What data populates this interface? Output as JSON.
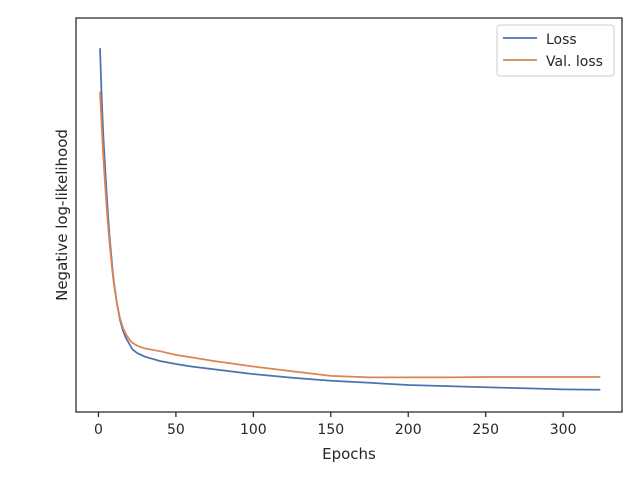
{
  "chart_data": {
    "type": "line",
    "title": "",
    "xlabel": "Epochs",
    "ylabel": "Negative log-likelihood",
    "xlim": [
      -14.5,
      338
    ],
    "ylim": [
      0,
      1
    ],
    "xticks": [
      0,
      50,
      100,
      150,
      200,
      250,
      300
    ],
    "xtick_labels": [
      "0",
      "50",
      "100",
      "150",
      "200",
      "250",
      "300"
    ],
    "yticks_shown": false,
    "grid": false,
    "legend_position": "top-right",
    "series": [
      {
        "name": "Loss",
        "color": "#4c72b0",
        "x": [
          1,
          2,
          3,
          4,
          5,
          6,
          7,
          8,
          9,
          10,
          12,
          14,
          16,
          18,
          20,
          22,
          25,
          30,
          40,
          50,
          60,
          75,
          100,
          125,
          150,
          175,
          200,
          225,
          250,
          275,
          300,
          324
        ],
        "y": [
          0.95,
          0.82,
          0.72,
          0.64,
          0.57,
          0.5,
          0.44,
          0.39,
          0.345,
          0.305,
          0.245,
          0.2,
          0.17,
          0.15,
          0.135,
          0.12,
          0.11,
          0.1,
          0.088,
          0.08,
          0.073,
          0.065,
          0.052,
          0.042,
          0.034,
          0.028,
          0.022,
          0.019,
          0.016,
          0.013,
          0.01,
          0.009
        ]
      },
      {
        "name": "Val. loss",
        "color": "#dd8452",
        "x": [
          1,
          2,
          3,
          4,
          5,
          6,
          7,
          8,
          9,
          10,
          12,
          14,
          16,
          18,
          20,
          22,
          25,
          30,
          40,
          50,
          60,
          75,
          100,
          125,
          150,
          175,
          200,
          225,
          250,
          275,
          300,
          324
        ],
        "y": [
          0.83,
          0.74,
          0.66,
          0.59,
          0.53,
          0.47,
          0.42,
          0.375,
          0.335,
          0.3,
          0.245,
          0.205,
          0.178,
          0.16,
          0.147,
          0.138,
          0.13,
          0.123,
          0.115,
          0.105,
          0.098,
          0.088,
          0.073,
          0.06,
          0.047,
          0.043,
          0.043,
          0.043,
          0.044,
          0.044,
          0.044,
          0.044
        ]
      }
    ]
  }
}
